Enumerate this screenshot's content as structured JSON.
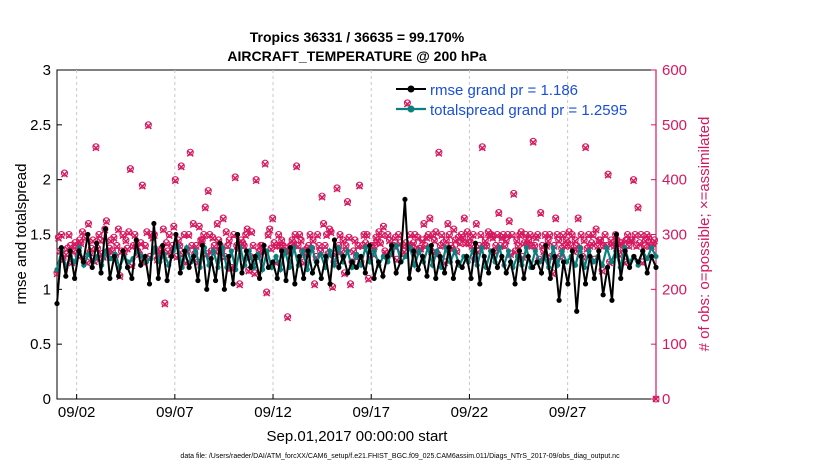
{
  "chart_data": {
    "type": "line",
    "title_line1": "Tropics 36331 / 36635 = 99.170%",
    "title_line2": "AIRCRAFT_TEMPERATURE @ 200 hPa",
    "xlabel": "Sep.01,2017 00:00:00 start",
    "ylabel": "rmse and totalspread",
    "ylabel_right": "# of obs: o=possible; ×=assimilated",
    "xlim": [
      0,
      30.5
    ],
    "ylim": [
      0,
      3
    ],
    "ylim_right": [
      0,
      600
    ],
    "x_ticks": [
      {
        "x": 1,
        "label": "09/02"
      },
      {
        "x": 6,
        "label": "09/07"
      },
      {
        "x": 11,
        "label": "09/12"
      },
      {
        "x": 16,
        "label": "09/17"
      },
      {
        "x": 21,
        "label": "09/22"
      },
      {
        "x": 26,
        "label": "09/27"
      }
    ],
    "y_ticks": [
      "0",
      "0.5",
      "1",
      "1.5",
      "2",
      "2.5",
      "3"
    ],
    "y_ticks_right": [
      "0",
      "100",
      "200",
      "300",
      "400",
      "500",
      "600"
    ],
    "legend": {
      "rmse": "rmse grand pr = 1.186",
      "spread": "totalspread grand pr = 1.2595"
    },
    "colors": {
      "rmse": "#000000",
      "spread": "#0a8080",
      "obs": "#d6195f",
      "legend_text": "#1b4fd8"
    },
    "series": [
      {
        "name": "rmse",
        "values": [
          0.87,
          1.38,
          1.12,
          1.35,
          1.1,
          1.35,
          1.25,
          1.5,
          1.2,
          1.42,
          1.15,
          1.55,
          1.1,
          1.3,
          1.12,
          1.35,
          1.2,
          1.1,
          1.45,
          1.22,
          1.3,
          1.05,
          1.6,
          1.1,
          1.4,
          1.08,
          1.3,
          1.5,
          1.15,
          1.35,
          1.2,
          1.3,
          1.08,
          1.4,
          1.0,
          1.28,
          1.08,
          1.42,
          1.0,
          1.3,
          1.05,
          1.5,
          1.15,
          1.35,
          1.2,
          1.3,
          1.1,
          1.4,
          1.2,
          1.25,
          1.1,
          1.35,
          1.08,
          1.38,
          1.05,
          1.3,
          1.1,
          1.35,
          1.15,
          1.25,
          1.1,
          1.3,
          1.05,
          1.45,
          1.2,
          1.3,
          1.15,
          1.25,
          1.2,
          1.3,
          1.15,
          1.4,
          1.1,
          1.25,
          1.12,
          1.3,
          1.4,
          1.15,
          1.25,
          1.82,
          1.1,
          1.35,
          1.18,
          1.3,
          1.12,
          1.4,
          1.1,
          1.3,
          1.15,
          1.38,
          1.1,
          1.25,
          1.2,
          1.3,
          1.1,
          1.42,
          1.05,
          1.3,
          1.15,
          1.35,
          1.2,
          1.3,
          1.15,
          1.25,
          1.05,
          1.35,
          1.1,
          1.3,
          1.2,
          1.25,
          1.15,
          1.4,
          1.1,
          1.3,
          0.9,
          1.25,
          1.05,
          1.35,
          0.8,
          1.3,
          1.05,
          1.3,
          1.1,
          1.35,
          0.95,
          1.2,
          0.9,
          1.5,
          1.1,
          1.35,
          1.2,
          1.3,
          1.25,
          1.35,
          1.15,
          1.3,
          1.2
        ]
      },
      {
        "name": "totalspread",
        "values": [
          1.18,
          1.35,
          1.2,
          1.3,
          1.25,
          1.38,
          1.22,
          1.32,
          1.25,
          1.3,
          1.22,
          1.35,
          1.28,
          1.32,
          1.2,
          1.3,
          1.25,
          1.28,
          1.35,
          1.3,
          1.25,
          1.28,
          1.38,
          1.25,
          1.32,
          1.22,
          1.35,
          1.4,
          1.2,
          1.38,
          1.25,
          1.35,
          1.2,
          1.38,
          1.22,
          1.35,
          1.2,
          1.38,
          1.2,
          1.35,
          1.18,
          1.38,
          1.22,
          1.35,
          1.2,
          1.32,
          1.18,
          1.35,
          1.2,
          1.3,
          1.18,
          1.35,
          1.2,
          1.38,
          1.22,
          1.35,
          1.18,
          1.38,
          1.25,
          1.32,
          1.2,
          1.35,
          1.22,
          1.38,
          1.25,
          1.35,
          1.2,
          1.32,
          1.22,
          1.38,
          1.25,
          1.35,
          1.22,
          1.3,
          1.25,
          1.35,
          1.4,
          1.25,
          1.3,
          1.38,
          1.22,
          1.35,
          1.25,
          1.38,
          1.22,
          1.35,
          1.2,
          1.38,
          1.25,
          1.35,
          1.22,
          1.3,
          1.25,
          1.35,
          1.22,
          1.38,
          1.2,
          1.35,
          1.25,
          1.38,
          1.22,
          1.35,
          1.2,
          1.3,
          1.22,
          1.38,
          1.2,
          1.35,
          1.25,
          1.3,
          1.2,
          1.38,
          1.22,
          1.35,
          1.25,
          1.3,
          1.22,
          1.38,
          1.2,
          1.35,
          1.25,
          1.3,
          1.22,
          1.38,
          1.25,
          1.35,
          1.2,
          1.38,
          1.25,
          1.3,
          1.22,
          1.35,
          1.28,
          1.38,
          1.3
        ]
      },
      {
        "name": "obs_possible",
        "values": [
          230,
          295,
          270,
          300,
          255,
          412,
          265,
          275,
          300,
          280,
          250,
          270,
          285,
          280,
          262,
          290,
          285,
          305,
          255,
          295,
          250,
          320,
          268,
          275,
          290,
          252,
          460,
          275,
          300,
          290,
          265,
          260,
          310,
          325,
          270,
          275,
          290,
          270,
          295,
          260,
          280,
          310,
          225,
          270,
          300,
          270,
          290,
          275,
          305,
          420,
          245,
          280,
          300,
          280,
          270,
          265,
          285,
          390,
          250,
          280,
          305,
          500,
          260,
          300,
          295,
          300,
          270,
          255,
          265,
          270,
          275,
          310,
          175,
          285,
          270,
          300,
          265,
          280,
          315,
          400,
          260,
          290,
          280,
          425,
          265,
          300,
          250,
          270,
          300,
          450,
          280,
          320,
          265,
          280,
          250,
          315,
          290,
          290,
          300,
          350,
          265,
          380,
          300,
          270,
          295,
          280,
          270,
          320,
          290,
          280,
          270,
          330,
          260,
          305,
          280,
          290,
          240,
          240,
          300,
          405,
          280,
          275,
          210,
          290,
          285,
          280,
          300,
          310,
          235,
          260,
          305,
          280,
          230,
          400,
          260,
          270,
          280,
          280,
          270,
          430,
          195,
          300,
          310,
          275,
          330,
          285,
          250,
          280,
          300,
          280,
          290,
          280,
          270,
          275,
          150,
          270,
          280,
          290,
          285,
          300,
          425,
          280,
          300,
          290,
          270,
          250,
          265,
          275,
          280,
          300,
          275,
          290,
          210,
          260,
          300,
          280,
          270,
          370,
          320,
          280,
          300,
          265,
          310,
          305,
          205,
          250,
          265,
          385,
          280,
          300,
          270,
          290,
          230,
          280,
          360,
          295,
          210,
          250,
          270,
          290,
          260,
          280,
          390,
          250,
          280,
          300,
          285,
          300,
          220,
          260,
          280,
          265,
          280,
          295,
          290,
          305,
          285,
          300,
          315,
          270,
          265,
          300,
          290,
          265,
          280,
          280,
          295,
          255,
          300,
          285,
          265,
          280,
          270,
          285,
          540,
          280,
          300,
          280,
          285,
          300,
          270,
          295,
          275,
          275,
          290,
          320,
          280,
          295,
          300,
          330,
          270,
          300,
          290,
          305,
          265,
          450,
          280,
          300,
          285,
          250,
          290,
          320,
          300,
          280,
          275,
          310,
          290,
          270,
          295,
          285,
          300,
          295,
          330,
          285,
          305,
          285,
          295,
          280,
          300,
          255,
          320,
          270,
          280,
          300,
          460,
          280,
          290,
          280,
          305,
          300,
          300,
          295,
          270,
          280,
          300,
          340,
          280,
          295,
          300,
          280,
          290,
          300,
          325,
          265,
          300,
          375,
          270,
          290,
          280,
          300,
          305,
          260,
          285,
          300,
          285,
          290,
          300,
          280,
          470,
          280,
          295,
          300,
          255,
          340,
          280,
          270,
          300,
          280,
          290,
          300,
          260,
          230,
          280,
          330,
          300,
          290,
          260,
          275,
          300,
          280,
          290,
          285,
          305,
          280,
          300,
          270,
          290,
          280,
          330,
          275,
          300,
          260,
          290,
          460,
          275,
          300,
          280,
          285,
          300,
          255,
          310,
          280,
          290,
          290,
          235,
          280,
          300,
          280,
          410,
          250,
          290,
          285,
          280,
          300,
          290,
          265,
          285,
          285,
          275,
          250,
          290,
          300,
          280,
          290,
          290,
          400,
          300,
          280,
          350,
          285,
          300,
          250,
          280,
          290,
          300,
          295,
          280,
          280,
          285,
          290,
          0
        ]
      },
      {
        "name": "obs_assimilated",
        "values": [
          228,
          293,
          268,
          298,
          253,
          410,
          263,
          273,
          298,
          278,
          248,
          268,
          283,
          278,
          260,
          288,
          283,
          303,
          253,
          293,
          248,
          318,
          266,
          273,
          288,
          250,
          458,
          273,
          298,
          288,
          263,
          258,
          308,
          323,
          268,
          273,
          288,
          268,
          293,
          258,
          278,
          308,
          223,
          268,
          298,
          268,
          288,
          273,
          303,
          418,
          243,
          278,
          298,
          278,
          268,
          263,
          283,
          388,
          248,
          278,
          303,
          498,
          258,
          298,
          293,
          298,
          268,
          253,
          263,
          268,
          273,
          308,
          173,
          283,
          268,
          298,
          263,
          278,
          313,
          398,
          258,
          288,
          278,
          423,
          263,
          298,
          248,
          268,
          298,
          448,
          278,
          318,
          263,
          278,
          248,
          313,
          288,
          288,
          298,
          348,
          263,
          378,
          298,
          268,
          293,
          278,
          268,
          318,
          288,
          278,
          268,
          328,
          258,
          303,
          278,
          288,
          238,
          238,
          298,
          403,
          278,
          273,
          208,
          288,
          283,
          278,
          298,
          308,
          233,
          258,
          303,
          278,
          228,
          398,
          258,
          268,
          278,
          278,
          268,
          428,
          193,
          298,
          308,
          273,
          328,
          283,
          248,
          278,
          298,
          278,
          288,
          278,
          268,
          273,
          148,
          268,
          278,
          288,
          283,
          298,
          423,
          278,
          298,
          288,
          268,
          248,
          263,
          273,
          278,
          298,
          273,
          288,
          208,
          258,
          298,
          278,
          268,
          368,
          318,
          278,
          298,
          263,
          308,
          303,
          203,
          248,
          263,
          383,
          278,
          298,
          268,
          288,
          228,
          278,
          358,
          293,
          208,
          248,
          268,
          288,
          258,
          278,
          388,
          248,
          278,
          298,
          283,
          298,
          218,
          258,
          278,
          263,
          278,
          293,
          288,
          303,
          283,
          298,
          313,
          268,
          263,
          298,
          288,
          263,
          278,
          278,
          293,
          253,
          298,
          283,
          263,
          278,
          268,
          283,
          538,
          278,
          298,
          278,
          283,
          298,
          268,
          293,
          273,
          273,
          288,
          318,
          278,
          293,
          298,
          328,
          268,
          298,
          288,
          303,
          263,
          448,
          278,
          298,
          283,
          248,
          288,
          318,
          298,
          278,
          273,
          308,
          288,
          268,
          293,
          283,
          298,
          293,
          328,
          283,
          303,
          283,
          293,
          278,
          298,
          253,
          318,
          268,
          278,
          298,
          458,
          278,
          288,
          278,
          303,
          298,
          298,
          293,
          268,
          278,
          298,
          338,
          278,
          293,
          298,
          278,
          288,
          298,
          323,
          263,
          298,
          373,
          268,
          288,
          278,
          298,
          303,
          258,
          283,
          298,
          283,
          288,
          298,
          278,
          468,
          278,
          293,
          298,
          253,
          338,
          278,
          268,
          298,
          278,
          288,
          298,
          258,
          228,
          278,
          328,
          298,
          288,
          258,
          273,
          298,
          278,
          288,
          283,
          303,
          278,
          298,
          268,
          288,
          278,
          328,
          273,
          298,
          258,
          288,
          458,
          273,
          298,
          278,
          283,
          298,
          253,
          308,
          278,
          288,
          288,
          233,
          278,
          298,
          278,
          408,
          248,
          288,
          283,
          278,
          298,
          288,
          263,
          283,
          283,
          273,
          248,
          288,
          298,
          278,
          288,
          288,
          398,
          298,
          278,
          348,
          283,
          298,
          248,
          278,
          288,
          298,
          293,
          278,
          278,
          283,
          288,
          0
        ]
      }
    ]
  },
  "footer": "data file: /Users/raeder/DAI/ATM_forcXX/CAM6_setup/f.e21.FHIST_BGC.f09_025.CAM6assim.011/Diags_NTrS_2017-09/obs_diag_output.nc"
}
